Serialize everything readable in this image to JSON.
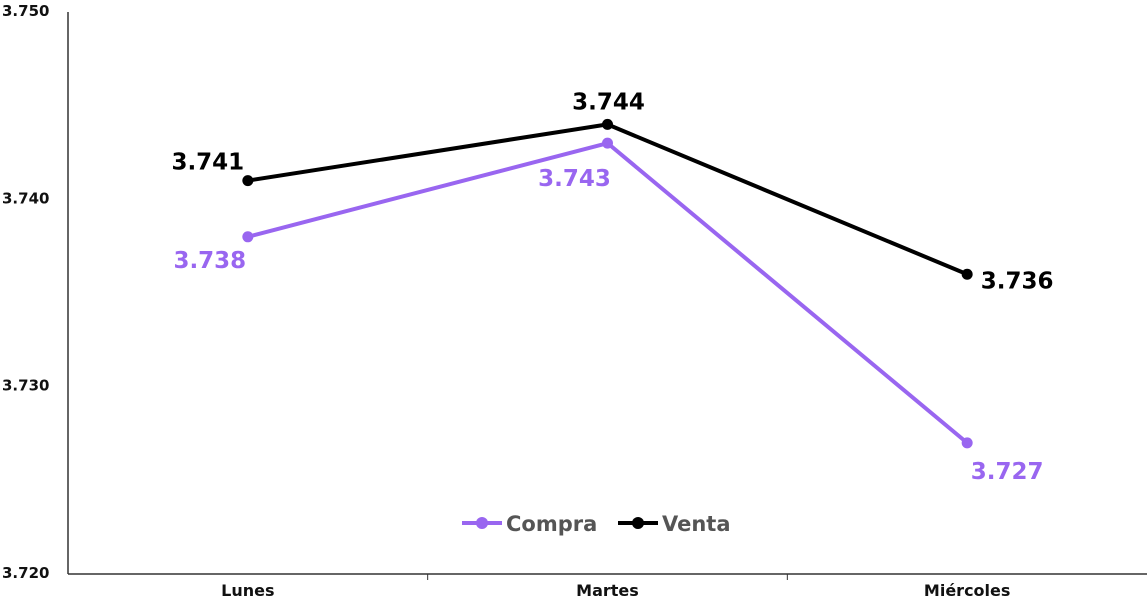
{
  "chart_data": {
    "type": "line",
    "categories": [
      "Lunes",
      "Martes",
      "Miércoles"
    ],
    "series": [
      {
        "name": "Compra",
        "values": [
          3.738,
          3.743,
          3.727
        ],
        "labels": [
          "3.738",
          "3.743",
          "3.727"
        ],
        "color": "#9966f0",
        "label_position": "below"
      },
      {
        "name": "Venta",
        "values": [
          3.741,
          3.744,
          3.736
        ],
        "labels": [
          "3.741",
          "3.744",
          "3.736"
        ],
        "color": "#000000",
        "label_position": "above"
      }
    ],
    "ylim": [
      3.72,
      3.75
    ],
    "yticks": [
      3.72,
      3.73,
      3.74,
      3.75
    ],
    "ytick_labels": [
      "3.720",
      "3.730",
      "3.740",
      "3.750"
    ],
    "grid": false,
    "legend": "bottom-center",
    "title": "",
    "xlabel": "",
    "ylabel": ""
  }
}
